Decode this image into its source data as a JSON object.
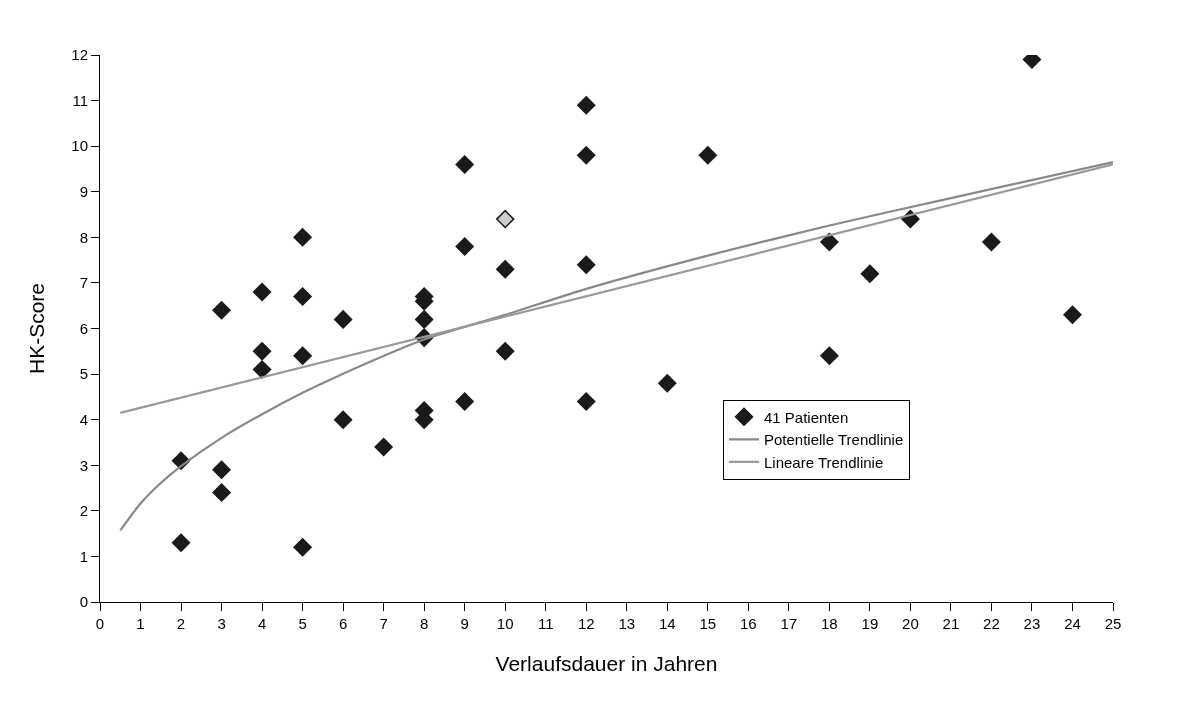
{
  "chart_data": {
    "type": "scatter",
    "xlabel": "Verlaufsdauer in Jahren",
    "ylabel": "HK-Score",
    "xlim": [
      0,
      25
    ],
    "ylim": [
      0,
      12
    ],
    "xticks": [
      0,
      1,
      2,
      3,
      4,
      5,
      6,
      7,
      8,
      9,
      10,
      11,
      12,
      13,
      14,
      15,
      16,
      17,
      18,
      19,
      20,
      21,
      22,
      23,
      24,
      25
    ],
    "yticks": [
      0,
      1,
      2,
      3,
      4,
      5,
      6,
      7,
      8,
      9,
      10,
      11,
      12
    ],
    "legend": "right",
    "series": [
      {
        "name": "41 Patienten",
        "marker": "diamond",
        "color": "#1a1a1a",
        "x": [
          2,
          2,
          3,
          3,
          3,
          4,
          4,
          4,
          5,
          5,
          5,
          5,
          6,
          6,
          7,
          8,
          8,
          8,
          8,
          8,
          8,
          9,
          9,
          9,
          10,
          10,
          10,
          12,
          12,
          12,
          12,
          14,
          15,
          18,
          18,
          19,
          20,
          22,
          23,
          24
        ],
        "values": [
          3.1,
          1.3,
          6.4,
          2.9,
          2.4,
          6.8,
          5.5,
          5.1,
          8.0,
          6.7,
          5.4,
          1.2,
          6.2,
          4.0,
          3.4,
          6.7,
          6.6,
          6.2,
          5.8,
          4.2,
          4.0,
          9.6,
          7.8,
          4.4,
          8.4,
          7.3,
          5.5,
          10.9,
          9.8,
          7.4,
          4.4,
          4.8,
          9.8,
          7.9,
          5.4,
          7.2,
          8.4,
          7.9,
          11.9,
          6.3
        ],
        "colors": [
          "#1a1a1a",
          "#1a1a1a",
          "#1a1a1a",
          "#1a1a1a",
          "#1a1a1a",
          "#1a1a1a",
          "#1a1a1a",
          "#1a1a1a",
          "#1a1a1a",
          "#1a1a1a",
          "#1a1a1a",
          "#1a1a1a",
          "#1a1a1a",
          "#1a1a1a",
          "#1a1a1a",
          "#1a1a1a",
          "#1a1a1a",
          "#1a1a1a",
          "#1a1a1a",
          "#1a1a1a",
          "#1a1a1a",
          "#1a1a1a",
          "#1a1a1a",
          "#1a1a1a",
          "#cccccc",
          "#1a1a1a",
          "#1a1a1a",
          "#1a1a1a",
          "#1a1a1a",
          "#1a1a1a",
          "#1a1a1a",
          "#1a1a1a",
          "#1a1a1a",
          "#1a1a1a",
          "#1a1a1a",
          "#1a1a1a",
          "#1a1a1a",
          "#1a1a1a",
          "#1a1a1a",
          "#1a1a1a"
        ]
      },
      {
        "name": "Potentielle Trendlinie",
        "type": "line",
        "marker": "none",
        "line_style": "solid",
        "color": "#888888",
        "x": [
          0.5,
          1,
          1.5,
          2,
          3,
          4,
          5,
          6,
          8,
          10,
          12,
          15,
          18,
          21,
          25
        ],
        "values": [
          1.57,
          2.16,
          2.61,
          2.98,
          3.6,
          4.12,
          4.59,
          5.01,
          5.76,
          6.3,
          6.87,
          7.6,
          8.26,
          8.86,
          9.65
        ]
      },
      {
        "name": "Lineare Trendlinie",
        "type": "line",
        "marker": "none",
        "line_style": "solid",
        "color": "#999999",
        "x": [
          0.5,
          25
        ],
        "values": [
          4.15,
          9.6
        ]
      }
    ]
  }
}
